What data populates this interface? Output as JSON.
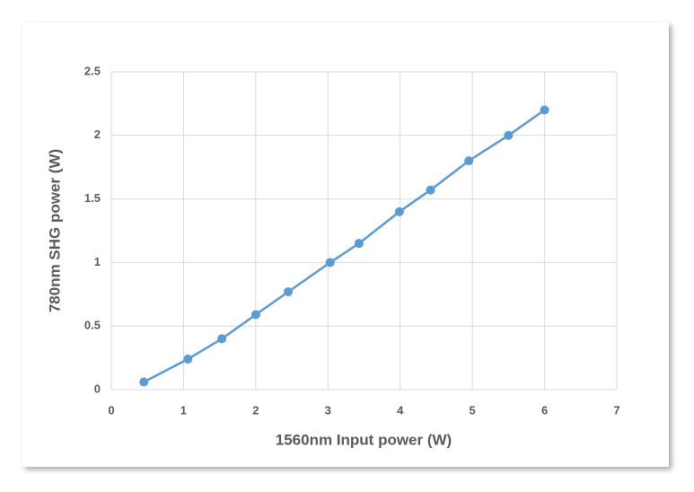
{
  "chart_data": {
    "type": "line",
    "x_label": "1560nm Input power (W)",
    "y_label": "780nm SHG power (W)",
    "series": [
      {
        "color": "#5b9bd5",
        "x": [
          0.45,
          1.06,
          1.53,
          2.0,
          2.45,
          3.03,
          3.43,
          3.99,
          4.42,
          4.95,
          5.5,
          6.0
        ],
        "values": [
          0.06,
          0.24,
          0.4,
          0.59,
          0.77,
          1.0,
          1.15,
          1.4,
          1.57,
          1.8,
          2.0,
          2.2
        ]
      }
    ],
    "xlim": [
      0,
      7
    ],
    "xticks": [
      0,
      1,
      2,
      3,
      4,
      5,
      6,
      7
    ],
    "ylim": [
      0,
      2.5
    ],
    "yticks": [
      0,
      0.5,
      1,
      1.5,
      2,
      2.5
    ],
    "grid": true
  }
}
